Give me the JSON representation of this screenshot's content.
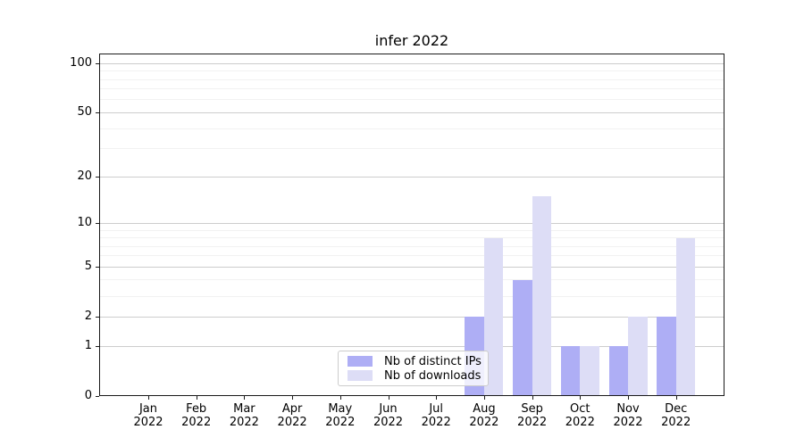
{
  "chart_data": {
    "type": "bar",
    "title": "infer 2022",
    "categories": [
      "Jan",
      "Feb",
      "Mar",
      "Apr",
      "May",
      "Jun",
      "Jul",
      "Aug",
      "Sep",
      "Oct",
      "Nov",
      "Dec"
    ],
    "year_label": "2022",
    "series": [
      {
        "name": "Nb of distinct IPs",
        "color": "#aeaef5",
        "values": [
          0,
          0,
          0,
          0,
          0,
          0,
          0,
          2,
          4,
          1,
          1,
          2
        ]
      },
      {
        "name": "Nb of downloads",
        "color": "#ddddf6",
        "values": [
          0,
          0,
          0,
          0,
          0,
          0,
          0,
          8,
          15,
          1,
          2,
          8
        ]
      }
    ],
    "y_axis": {
      "scale": "log10(value+1)",
      "tick_labels": [
        "0",
        "1",
        "2",
        "5",
        "10",
        "20",
        "50",
        "100"
      ],
      "major_ticks": [
        0,
        1,
        2,
        5,
        10,
        20,
        50,
        100
      ],
      "minor_gridlines": [
        3,
        4,
        6,
        7,
        8,
        9,
        30,
        40,
        60,
        70,
        80,
        90
      ],
      "range": [
        0,
        114
      ]
    },
    "grid": "on",
    "legend_position": "lower center-left inside plot",
    "colors": {
      "spine": "#1a1a1a",
      "grid_major": "#cdcdcd",
      "grid_minor": "#f2f2f2"
    }
  }
}
